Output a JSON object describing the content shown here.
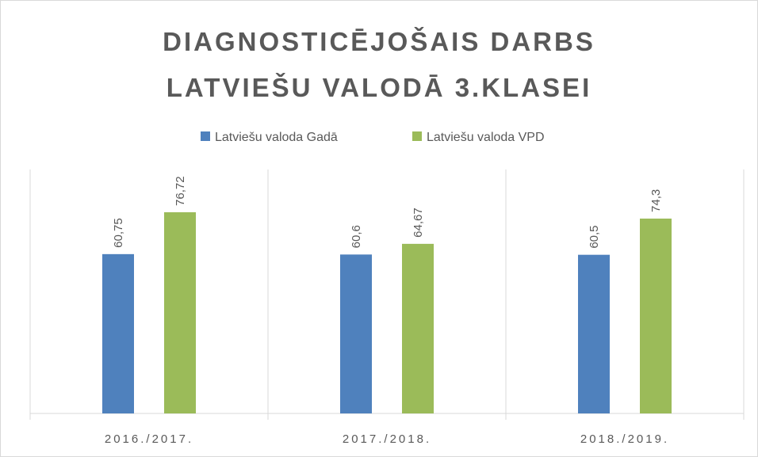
{
  "chart_data": {
    "type": "bar",
    "title": [
      "DIAGNOSTICĒJOŠAIS DARBS",
      "LATVIEŠU VALODĀ 3.KLASEI"
    ],
    "categories": [
      "2016./2017.",
      "2017./2018.",
      "2018./2019."
    ],
    "series": [
      {
        "name": "Latviešu valoda Gadā",
        "color": "#4f81bd",
        "values": [
          60.75,
          60.6,
          60.5
        ],
        "value_labels": [
          "60,75",
          "60,6",
          "60,5"
        ]
      },
      {
        "name": "Latviešu valoda VPD",
        "color": "#9bbb59",
        "values": [
          76.72,
          64.67,
          74.3
        ],
        "value_labels": [
          "76,72",
          "64,67",
          "74,3"
        ]
      }
    ],
    "ylim": [
      0,
      90
    ]
  }
}
